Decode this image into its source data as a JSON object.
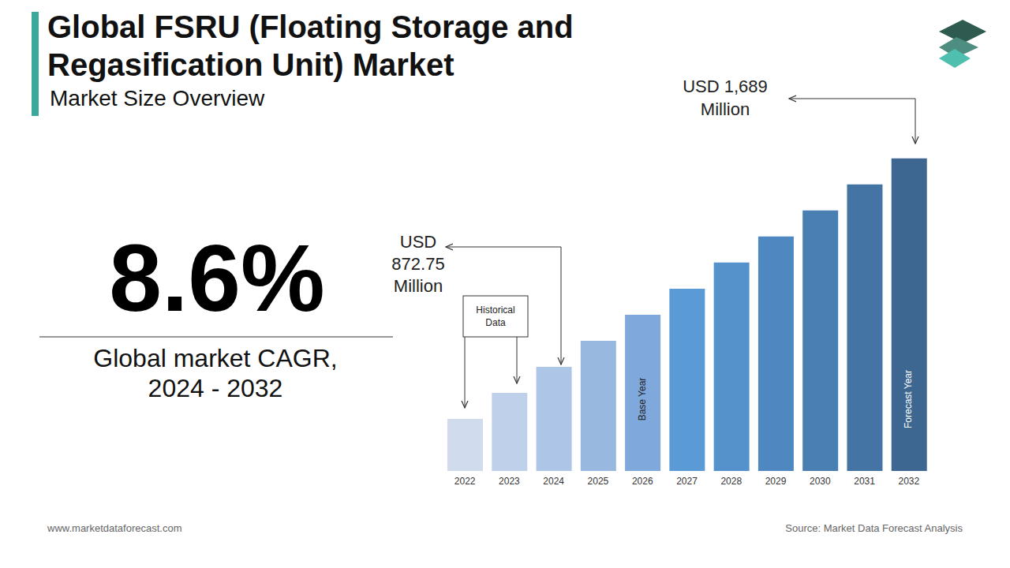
{
  "chart_data": {
    "type": "bar",
    "title": [
      "Global FSRU (Floating Storage and",
      "Regasification Unit) Market"
    ],
    "subtitle": "Market Size Overview",
    "categories": [
      "2022",
      "2023",
      "2024",
      "2025",
      "2026",
      "2027",
      "2028",
      "2029",
      "2030",
      "2031",
      "2032"
    ],
    "values": [
      668.7,
      770.7,
      872.75,
      974.8,
      1076.8,
      1178.9,
      1281,
      1383,
      1485,
      1587,
      1689
    ],
    "colors": [
      "#d0dcee",
      "#bfd0ea",
      "#adc5e6",
      "#98b8e0",
      "#7fa8dc",
      "#5b9bd5",
      "#5592cc",
      "#4f88c0",
      "#4a7fb4",
      "#4474a4",
      "#3d6790"
    ],
    "ylim": [
      465,
      1750
    ],
    "yticks": [
      465,
      1750
    ],
    "tick_labels": "x",
    "callouts": [
      {
        "text": [
          "USD 1,689",
          "Million"
        ]
      },
      {
        "text": [
          "USD 872.75",
          "Million"
        ]
      }
    ],
    "historical_note": "Historical Data",
    "bar_notes": [
      {
        "category": "2026",
        "text": "Base Year"
      },
      {
        "category": "2032",
        "text": "Forecast Year"
      }
    ],
    "kpi": {
      "text": "8.6%",
      "caption": [
        "Global market CAGR,",
        "2024 - 2032"
      ]
    },
    "website": "www.marketdataforecast.com",
    "source": "Source: Market Data Forecast Analysis"
  }
}
